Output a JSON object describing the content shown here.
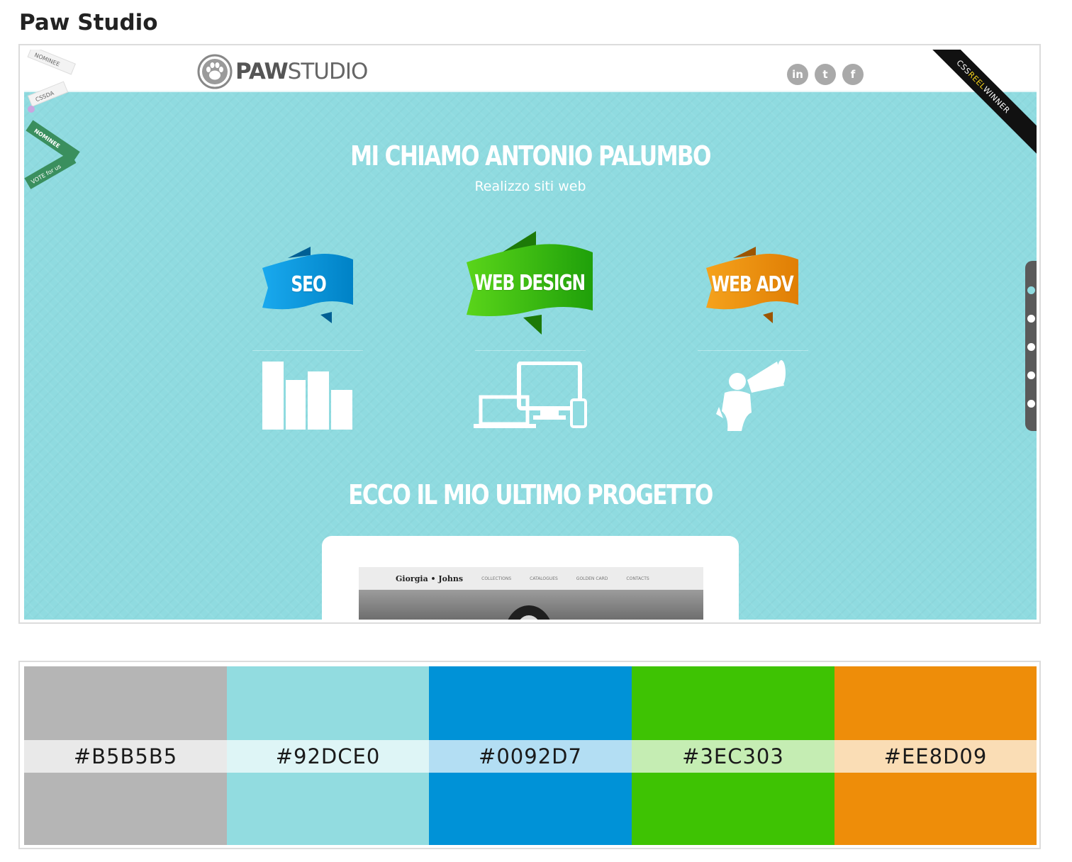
{
  "page": {
    "title": "Paw Studio"
  },
  "site": {
    "logo_bold": "PAW",
    "logo_light": "STUDIO",
    "social": [
      {
        "name": "linkedin-icon",
        "glyph": "in"
      },
      {
        "name": "twitter-icon",
        "glyph": "t"
      },
      {
        "name": "facebook-icon",
        "glyph": "f"
      }
    ],
    "corner_ribbon": {
      "part1": "CSS",
      "part2": "REEL",
      "part3": " WINNER"
    },
    "badges": {
      "nominee": "NOMINEE",
      "cssda": "CSSDA",
      "nominee2": "NOMINEE",
      "vote": "VOTE for us"
    },
    "hero_title": "MI CHIAMO ANTONIO PALUMBO",
    "hero_subtitle": "Realizzo siti web",
    "services": [
      {
        "label": "SEO",
        "color": "#0092D7",
        "icon": "bar-chart-icon"
      },
      {
        "label": "WEB DESIGN",
        "color": "#3EC303",
        "icon": "devices-icon"
      },
      {
        "label": "WEB ADV",
        "color": "#EE8D09",
        "icon": "megaphone-icon"
      }
    ],
    "section_title": "ECCO IL MIO ULTIMO PROGETTO",
    "project": {
      "brand": "Giorgia • Johns",
      "links": [
        "COLLECTIONS",
        "CATALOGUES",
        "GOLDEN CARD",
        "CONTACTS"
      ]
    },
    "side_nav_dots": 5
  },
  "palette": [
    {
      "hex": "#B5B5B5",
      "label": "#B5B5B5"
    },
    {
      "hex": "#92DCE0",
      "label": "#92DCE0"
    },
    {
      "hex": "#0092D7",
      "label": "#0092D7"
    },
    {
      "hex": "#3EC303",
      "label": "#3EC303"
    },
    {
      "hex": "#EE8D09",
      "label": "#EE8D09"
    }
  ]
}
